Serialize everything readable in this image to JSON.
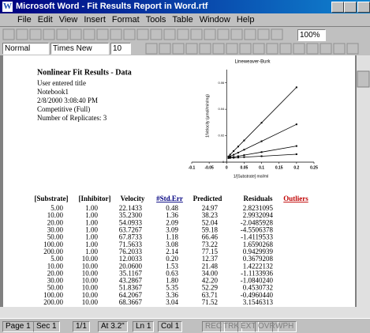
{
  "window": {
    "title": "Microsoft Word - Fit Results Report in Word.rtf"
  },
  "menu": [
    "File",
    "Edit",
    "View",
    "Insert",
    "Format",
    "Tools",
    "Table",
    "Window",
    "Help"
  ],
  "toolbar": {
    "zoom": "100%"
  },
  "format_bar": {
    "style": "Normal",
    "font": "Times New Roman",
    "size": "10"
  },
  "document": {
    "heading": "Nonlinear Fit Results - Data",
    "info": [
      "User entered title",
      "Notebook1",
      "2/8/2000 3:08:40 PM",
      "Competitive (Full)",
      "Number of Replicates:  3"
    ],
    "table": {
      "headers": [
        "[Substrate]",
        "[Inhibitor]",
        "Velocity",
        "#Std.Err",
        "Predicted",
        "Residuals",
        "Outliers"
      ],
      "rows": [
        [
          "5.00",
          "1.00",
          "22.1433",
          "0.48",
          "24.97",
          "2.8231095"
        ],
        [
          "10.00",
          "1.00",
          "35.2300",
          "1.36",
          "38.23",
          "2.9932094"
        ],
        [
          "20.00",
          "1.00",
          "54.0933",
          "2.09",
          "52.04",
          "-2.0485928"
        ],
        [
          "30.00",
          "1.00",
          "63.7267",
          "3.09",
          "59.18",
          "-4.5506378"
        ],
        [
          "50.00",
          "1.00",
          "67.8733",
          "1.18",
          "66.46",
          "-1.4119533"
        ],
        [
          "100.00",
          "1.00",
          "71.5633",
          "3.08",
          "73.22",
          "1.6590268"
        ],
        [
          "200.00",
          "1.00",
          "76.2033",
          "2.14",
          "77.15",
          "0.9429939"
        ],
        [
          "5.00",
          "10.00",
          "12.0033",
          "0.20",
          "12.37",
          "0.3679208"
        ],
        [
          "10.00",
          "10.00",
          "20.0600",
          "1.53",
          "21.48",
          "1.4222132"
        ],
        [
          "20.00",
          "10.00",
          "35.1167",
          "0.63",
          "34.00",
          "-1.1133936"
        ],
        [
          "30.00",
          "10.00",
          "43.2867",
          "1.80",
          "42.20",
          "-1.0840240"
        ],
        [
          "50.00",
          "10.00",
          "51.8367",
          "5.35",
          "52.29",
          "0.4530732"
        ],
        [
          "100.00",
          "10.00",
          "64.2067",
          "3.36",
          "63.71",
          "-0.4960440"
        ],
        [
          "200.00",
          "10.00",
          "68.3667",
          "3.04",
          "71.52",
          "3.1546313"
        ]
      ]
    }
  },
  "chart_data": {
    "type": "line",
    "title": "Lineweaver-Burk",
    "x_label": "1/[Substrate] mol/ml",
    "y_label": "1/Velocity (µmol/min/mg)",
    "x": [
      0.005,
      0.01,
      0.02,
      0.033,
      0.05,
      0.1,
      0.2
    ],
    "series": [
      {
        "color": "#000000",
        "values": [
          0.0043,
          0.0057,
          0.0084,
          0.0118,
          0.0164,
          0.0298,
          0.0566
        ]
      },
      {
        "color": "#000000",
        "values": [
          0.0036,
          0.0043,
          0.0056,
          0.0072,
          0.0094,
          0.0158,
          0.0286
        ]
      },
      {
        "color": "#000000",
        "values": [
          0.0032,
          0.0035,
          0.0039,
          0.0045,
          0.0053,
          0.0076,
          0.0122
        ]
      },
      {
        "color": "#000000",
        "values": [
          0.0031,
          0.0032,
          0.0033,
          0.0035,
          0.0038,
          0.0045,
          0.006
        ]
      }
    ],
    "xlim": [
      -0.1,
      0.25
    ],
    "xticks": [
      -0.1,
      -0.05,
      0,
      0.05,
      0.1,
      0.15,
      0.2,
      0.25
    ],
    "ylim": [
      0,
      0.07
    ],
    "yticks": [
      0,
      0.02,
      0.04,
      0.06
    ]
  },
  "status_bar": [
    "Page 1",
    "Sec 1",
    "1/1",
    "At 3.2\"",
    "Ln 1",
    "Col 1",
    "REC",
    "TRK",
    "EXT",
    "OVR",
    "WPH"
  ]
}
